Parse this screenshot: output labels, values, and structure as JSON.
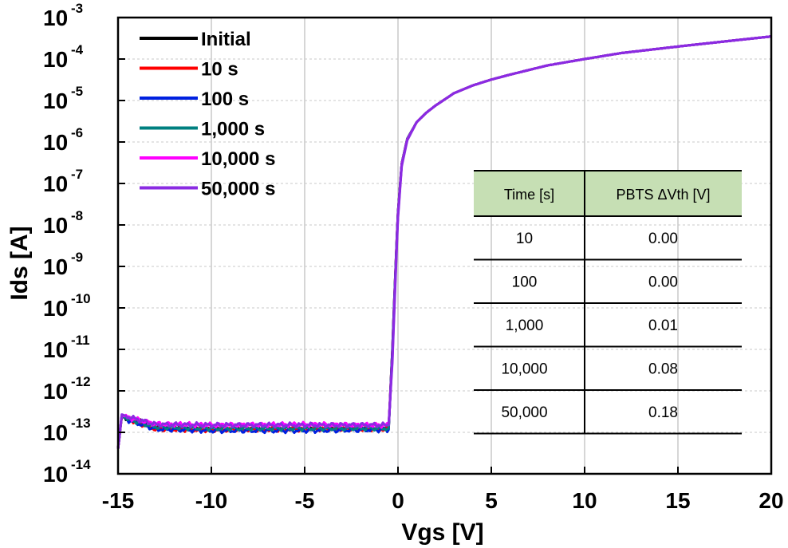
{
  "chart_data": {
    "type": "line",
    "xlabel": "Vgs [V]",
    "ylabel": "Ids [A]",
    "xlim": [
      -15,
      20
    ],
    "ylim": [
      1e-14,
      0.001
    ],
    "y_scale": "log",
    "grid": true,
    "legend_position": "top-left",
    "x_ticks": [
      "-15",
      "-10",
      "-5",
      "0",
      "5",
      "10",
      "15",
      "20"
    ],
    "y_ticks": [
      {
        "base": "10",
        "exp": "-3"
      },
      {
        "base": "10",
        "exp": "-4"
      },
      {
        "base": "10",
        "exp": "-5"
      },
      {
        "base": "10",
        "exp": "-6"
      },
      {
        "base": "10",
        "exp": "-7"
      },
      {
        "base": "10",
        "exp": "-8"
      },
      {
        "base": "10",
        "exp": "-9"
      },
      {
        "base": "10",
        "exp": "-10"
      },
      {
        "base": "10",
        "exp": "-11"
      },
      {
        "base": "10",
        "exp": "-12"
      },
      {
        "base": "10",
        "exp": "-13"
      },
      {
        "base": "10",
        "exp": "-14"
      }
    ],
    "series": [
      {
        "name": "Initial",
        "color": "#000000",
        "x": [
          -15,
          -14.8,
          -14.5,
          -13,
          -10,
          -5,
          -1.5,
          -0.5,
          -0.3,
          -0.1,
          0,
          0.2,
          0.5,
          1,
          1.5,
          2,
          3,
          4,
          5,
          6,
          8,
          10,
          12,
          15,
          18,
          20
        ],
        "y": [
          4e-14,
          2.5e-13,
          2.2e-13,
          1.4e-13,
          1.3e-13,
          1.3e-13,
          1.3e-13,
          1.3e-13,
          1e-11,
          2e-09,
          2e-08,
          3e-07,
          1.2e-06,
          3e-06,
          5e-06,
          7.5e-06,
          1.5e-05,
          2.3e-05,
          3.2e-05,
          4.2e-05,
          7e-05,
          0.0001,
          0.00014,
          0.0002,
          0.00028,
          0.00035
        ]
      },
      {
        "name": "10 s",
        "color": "#ff0000",
        "x": [
          -15,
          -14.8,
          -14.5,
          -13,
          -10,
          -5,
          -1.5,
          -0.5,
          -0.3,
          -0.1,
          0,
          0.2,
          0.5,
          1,
          1.5,
          2,
          3,
          4,
          5,
          6,
          8,
          10,
          12,
          15,
          18,
          20
        ],
        "y": [
          4e-14,
          2.4e-13,
          2.1e-13,
          1.2e-13,
          1.15e-13,
          1.2e-13,
          1.2e-13,
          1.2e-13,
          1e-11,
          2e-09,
          2e-08,
          3e-07,
          1.2e-06,
          3e-06,
          5e-06,
          7.5e-06,
          1.5e-05,
          2.3e-05,
          3.2e-05,
          4.2e-05,
          7e-05,
          0.0001,
          0.00014,
          0.0002,
          0.00028,
          0.00035
        ]
      },
      {
        "name": "100 s",
        "color": "#0020e0",
        "x": [
          -15,
          -14.8,
          -14.5,
          -13,
          -10,
          -5,
          -1.5,
          -0.5,
          -0.3,
          -0.1,
          0,
          0.2,
          0.5,
          1,
          1.5,
          2,
          3,
          4,
          5,
          6,
          8,
          10,
          12,
          15,
          18,
          20
        ],
        "y": [
          4e-14,
          2.5e-13,
          2e-13,
          1.2e-13,
          1.1e-13,
          1.1e-13,
          1.15e-13,
          1.15e-13,
          1e-11,
          2e-09,
          2e-08,
          3e-07,
          1.2e-06,
          3e-06,
          5e-06,
          7.5e-06,
          1.5e-05,
          2.3e-05,
          3.2e-05,
          4.2e-05,
          7e-05,
          0.0001,
          0.00014,
          0.0002,
          0.00028,
          0.00035
        ]
      },
      {
        "name": "1,000 s",
        "color": "#008080",
        "x": [
          -15,
          -14.8,
          -14.5,
          -13,
          -10,
          -5,
          -1.5,
          -0.5,
          -0.3,
          -0.1,
          0,
          0.2,
          0.5,
          1,
          1.5,
          2,
          3,
          4,
          5,
          6,
          8,
          10,
          12,
          15,
          18,
          20
        ],
        "y": [
          4e-14,
          2.5e-13,
          2.1e-13,
          1.35e-13,
          1.25e-13,
          1.25e-13,
          1.25e-13,
          1.25e-13,
          8e-12,
          1.8e-09,
          1.9e-08,
          2.9e-07,
          1.2e-06,
          3e-06,
          5e-06,
          7.5e-06,
          1.5e-05,
          2.3e-05,
          3.2e-05,
          4.2e-05,
          7e-05,
          0.0001,
          0.00014,
          0.0002,
          0.00028,
          0.00035
        ]
      },
      {
        "name": "10,000 s",
        "color": "#ff00ff",
        "x": [
          -15,
          -14.8,
          -14.5,
          -13,
          -10,
          -5,
          -1.5,
          -0.5,
          -0.3,
          -0.1,
          0,
          0.2,
          0.5,
          1,
          1.5,
          2,
          3,
          4,
          5,
          6,
          8,
          10,
          12,
          15,
          18,
          20
        ],
        "y": [
          4e-14,
          2.6e-13,
          2.3e-13,
          1.6e-13,
          1.5e-13,
          1.55e-13,
          1.5e-13,
          1.5e-13,
          6e-12,
          1.5e-09,
          1.7e-08,
          2.8e-07,
          1.15e-06,
          3e-06,
          5e-06,
          7.5e-06,
          1.5e-05,
          2.3e-05,
          3.2e-05,
          4.2e-05,
          7e-05,
          0.0001,
          0.00014,
          0.0002,
          0.00028,
          0.00035
        ]
      },
      {
        "name": "50,000  s",
        "color": "#8a2be2",
        "x": [
          -15,
          -14.8,
          -14.5,
          -13,
          -10,
          -5,
          -1.5,
          -0.5,
          -0.3,
          -0.1,
          0,
          0.2,
          0.5,
          1,
          1.5,
          2,
          3,
          4,
          5,
          6,
          8,
          10,
          12,
          15,
          18,
          20
        ],
        "y": [
          4e-14,
          2.7e-13,
          2.4e-13,
          1.55e-13,
          1.5e-13,
          1.5e-13,
          1.5e-13,
          1.5e-13,
          5e-12,
          1.2e-09,
          1.5e-08,
          2.6e-07,
          1.1e-06,
          3e-06,
          5e-06,
          7.5e-06,
          1.5e-05,
          2.3e-05,
          3.2e-05,
          4.2e-05,
          7e-05,
          0.0001,
          0.00014,
          0.0002,
          0.00028,
          0.00035
        ]
      }
    ],
    "inset_table": {
      "header_bg": "#c6dfb4",
      "headers": [
        "Time [s]",
        "PBTS ΔVth [V]"
      ],
      "rows": [
        [
          "10",
          "0.00"
        ],
        [
          "100",
          "0.00"
        ],
        [
          "1,000",
          "0.01"
        ],
        [
          "10,000",
          "0.08"
        ],
        [
          "50,000",
          "0.18"
        ]
      ]
    }
  }
}
